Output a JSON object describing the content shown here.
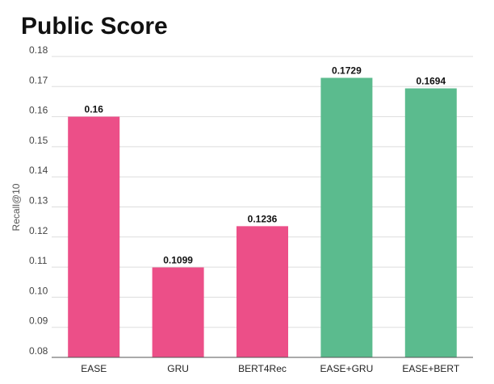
{
  "chart_data": {
    "type": "bar",
    "title": "Public Score",
    "xlabel": "",
    "ylabel": "Recall@10",
    "categories": [
      "EASE",
      "GRU",
      "BERT4Rec",
      "EASE+GRU",
      "EASE+BERT"
    ],
    "values": [
      0.16,
      0.1099,
      0.1236,
      0.1729,
      0.1694
    ],
    "data_labels": [
      "0.16",
      "0.1099",
      "0.1236",
      "0.1729",
      "0.1694"
    ],
    "bar_colors": [
      "#ec4f88",
      "#ec4f88",
      "#ec4f88",
      "#5bbb8e",
      "#5bbb8e"
    ],
    "ylim": [
      0.08,
      0.18
    ],
    "yticks": [
      "0.08",
      "0.09",
      "0.10",
      "0.11",
      "0.12",
      "0.13",
      "0.14",
      "0.15",
      "0.16",
      "0.17",
      "0.18"
    ],
    "grid": true,
    "legend": "none"
  }
}
